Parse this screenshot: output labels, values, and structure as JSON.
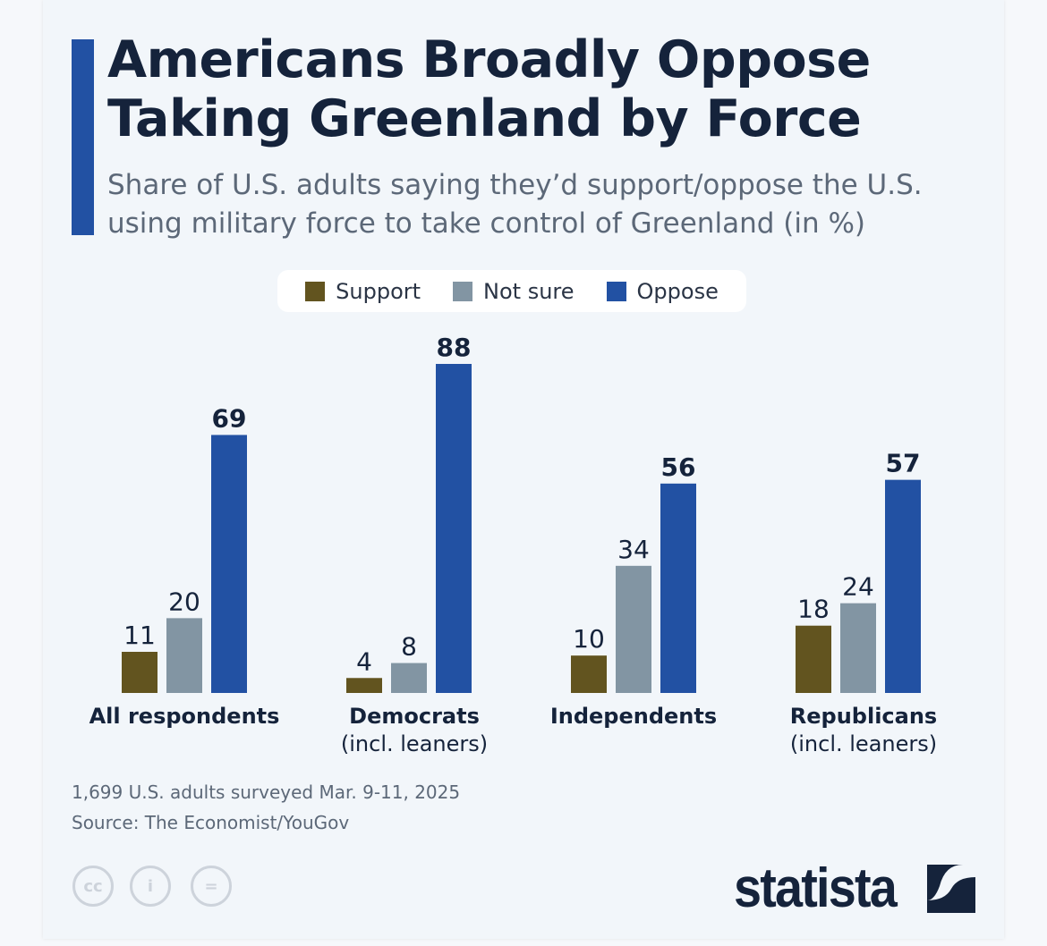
{
  "title_lines": [
    "Americans Broadly Oppose",
    "Taking Greenland by Force"
  ],
  "subtitle_lines": [
    "Share of U.S. adults saying they’d support/oppose the U.S.",
    "using military force to take control of Greenland (in %)"
  ],
  "colors": {
    "accent": "#2251a3",
    "Support": "#62541f",
    "Not sure": "#8295a3",
    "Oppose": "#2251a3"
  },
  "chart_data": {
    "type": "bar",
    "title": "Americans Broadly Oppose Taking Greenland by Force",
    "subtitle": "Share of U.S. adults saying they’d support/oppose the U.S. using military force to take control of Greenland (in %)",
    "categories": [
      {
        "name": "All respondents",
        "sub": ""
      },
      {
        "name": "Democrats",
        "sub": "(incl. leaners)"
      },
      {
        "name": "Independents",
        "sub": ""
      },
      {
        "name": "Republicans",
        "sub": "(incl. leaners)"
      }
    ],
    "series": [
      {
        "name": "Support",
        "values": [
          11,
          4,
          10,
          18
        ]
      },
      {
        "name": "Not sure",
        "values": [
          20,
          8,
          34,
          24
        ]
      },
      {
        "name": "Oppose",
        "values": [
          69,
          88,
          56,
          57
        ]
      }
    ],
    "ylim": [
      0,
      100
    ],
    "grid": false,
    "legend": "top-center",
    "bold_labels_series": "Oppose"
  },
  "notes": {
    "survey": "1,699 U.S. adults surveyed Mar. 9-11, 2025",
    "source": "Source: The Economist/YouGov"
  },
  "license_icons": [
    "cc-icon",
    "attribution-icon",
    "no-derivatives-icon"
  ],
  "logo": "statista"
}
